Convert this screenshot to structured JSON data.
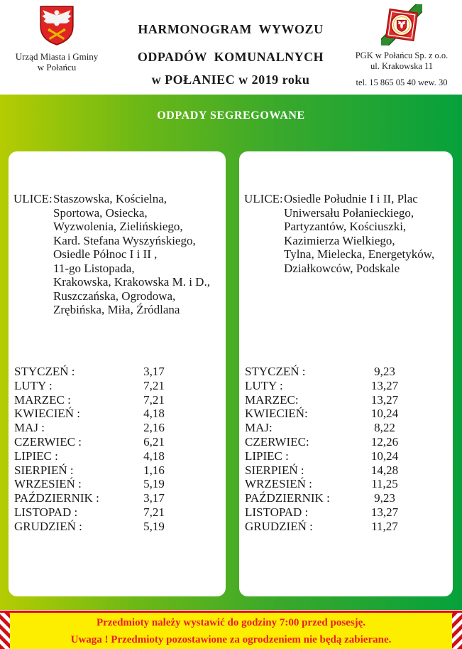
{
  "header": {
    "left_org": {
      "line1": "Urząd Miasta i Gminy",
      "line2": "w Połańcu",
      "crest": "polaniec-coat-of-arms"
    },
    "title": {
      "line1": "HARMONOGRAM  WYWOZU",
      "line2": "ODPADÓW  KOMUNALNYCH",
      "line3": "w POŁANIEC w 2019 roku"
    },
    "right_org": {
      "company": "PGK w Połańcu Sp. z o.o.",
      "address": "ul. Krakowska 11",
      "phone": "tel. 15 865 05 40 wew. 30",
      "crest": "pgk-logo"
    }
  },
  "section": {
    "title": "ODPADY SEGREGOWANE"
  },
  "cards": [
    {
      "ulice_label": "ULICE:",
      "streets": [
        "Staszowska, Kościelna,",
        "Sportowa, Osiecka,",
        "Wyzwolenia, Zielińskiego,",
        "Kard. Stefana Wyszyńskiego,",
        "Osiedle Północ I i II ,",
        "11-go Listopada,",
        "Krakowska, Krakowska M. i D.,",
        "Ruszczańska, Ogrodowa,",
        "Zrębińska, Miła, Źródlana"
      ],
      "months": [
        {
          "label": "STYCZEŃ :",
          "dates": "3,17"
        },
        {
          "label": "LUTY :",
          "dates": "7,21"
        },
        {
          "label": "MARZEC :",
          "dates": "7,21"
        },
        {
          "label": "KWIECIEŃ :",
          "dates": "4,18"
        },
        {
          "label": "MAJ :",
          "dates": "2,16"
        },
        {
          "label": "CZERWIEC :",
          "dates": "6,21"
        },
        {
          "label": "LIPIEC :",
          "dates": "4,18"
        },
        {
          "label": "SIERPIEŃ :",
          "dates": "1,16"
        },
        {
          "label": "WRZESIEŃ :",
          "dates": "5,19"
        },
        {
          "label": "PAŹDZIERNIK :",
          "dates": "3,17"
        },
        {
          "label": "LISTOPAD :",
          "dates": "7,21"
        },
        {
          "label": "GRUDZIEŃ :",
          "dates": "5,19"
        }
      ]
    },
    {
      "ulice_label": "ULICE:",
      "streets": [
        "Osiedle Południe I i II, Plac",
        "Uniwersału Połanieckiego,",
        "Partyzantów, Kościuszki,",
        "Kazimierza Wielkiego,",
        "Tylna, Mielecka, Energetyków,",
        "Działkowców, Podskale"
      ],
      "months": [
        {
          "label": "STYCZEŃ :",
          "dates": "9,23"
        },
        {
          "label": "LUTY :",
          "dates": "13,27"
        },
        {
          "label": "MARZEC:",
          "dates": "13,27"
        },
        {
          "label": "KWIECIEŃ:",
          "dates": "10,24"
        },
        {
          "label": "MAJ:",
          "dates": "8,22"
        },
        {
          "label": "CZERWIEC:",
          "dates": "12,26"
        },
        {
          "label": "LIPIEC :",
          "dates": "10,24"
        },
        {
          "label": "SIERPIEŃ :",
          "dates": "14,28"
        },
        {
          "label": "WRZESIEŃ :",
          "dates": "11,25"
        },
        {
          "label": "PAŹDZIERNIK :",
          "dates": "9,23"
        },
        {
          "label": "LISTOPAD :",
          "dates": "13,27"
        },
        {
          "label": "GRUDZIEŃ :",
          "dates": "11,27"
        }
      ]
    }
  ],
  "footer": {
    "line1": "Przedmioty należy wystawić do godziny 7:00 przed posesję.",
    "line2": "Uwaga ! Przedmioty pozostawione za ogrodzeniem nie będą zabierane."
  },
  "colors": {
    "band_gradient_left": "#b5cc02",
    "band_gradient_right": "#06a13c",
    "footer_yellow": "#fdee00",
    "footer_text_red": "#ea1b25",
    "hazard_red": "#cf1015",
    "crest_red": "#e02424"
  }
}
